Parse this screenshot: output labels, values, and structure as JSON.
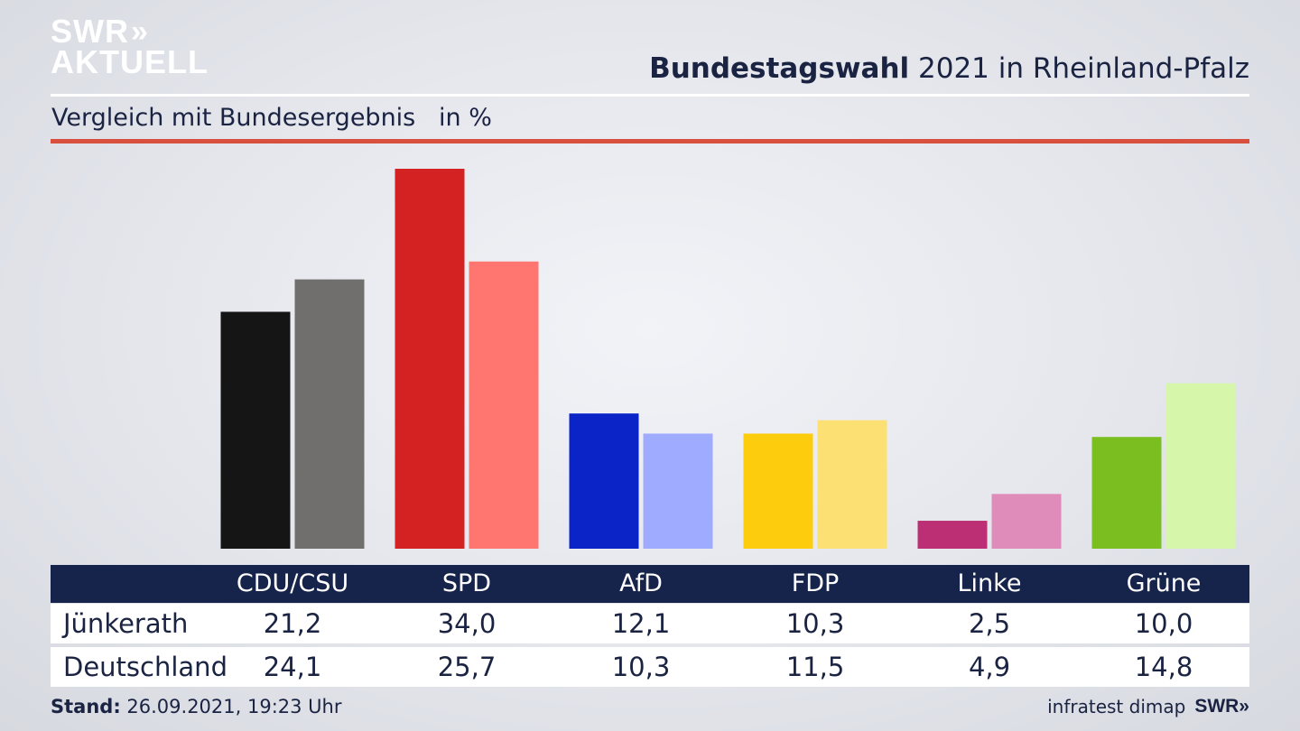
{
  "logo": {
    "line1": "SWR",
    "line2": "AKTUELL",
    "chevrons": "»"
  },
  "title": {
    "bold": "Bundestagswahl",
    "rest": " 2021 in Rheinland-Pfalz"
  },
  "subtitle": "Vergleich mit Bundesergebnis   in %",
  "colors": {
    "table_header": "#16234a",
    "accent_line": "#d9503f"
  },
  "chart_data": {
    "type": "bar",
    "categories": [
      "CDU/CSU",
      "SPD",
      "AfD",
      "FDP",
      "Linke",
      "Grüne"
    ],
    "series": [
      {
        "name": "Jünkerath",
        "values": [
          21.2,
          34.0,
          12.1,
          10.3,
          2.5,
          10.0
        ],
        "colors": [
          "#151515",
          "#d42121",
          "#0a24c8",
          "#fdcc0c",
          "#bc2f74",
          "#7abf1f"
        ]
      },
      {
        "name": "Deutschland",
        "values": [
          24.1,
          25.7,
          10.3,
          11.5,
          4.9,
          14.8
        ],
        "colors": [
          "#716f6d",
          "#ff7670",
          "#9fabfe",
          "#fde074",
          "#e08cba",
          "#d6f7a9"
        ]
      }
    ],
    "display_values": [
      [
        "21,2",
        "34,0",
        "12,1",
        "10,3",
        "2,5",
        "10,0"
      ],
      [
        "24,1",
        "25,7",
        "10,3",
        "11,5",
        "4,9",
        "14,8"
      ]
    ],
    "ylim": [
      0,
      34
    ]
  },
  "footer": {
    "stand_label": "Stand:",
    "stand_value": " 26.09.2021, 19:23 Uhr",
    "source": "infratest dimap",
    "brand": "SWR»"
  }
}
